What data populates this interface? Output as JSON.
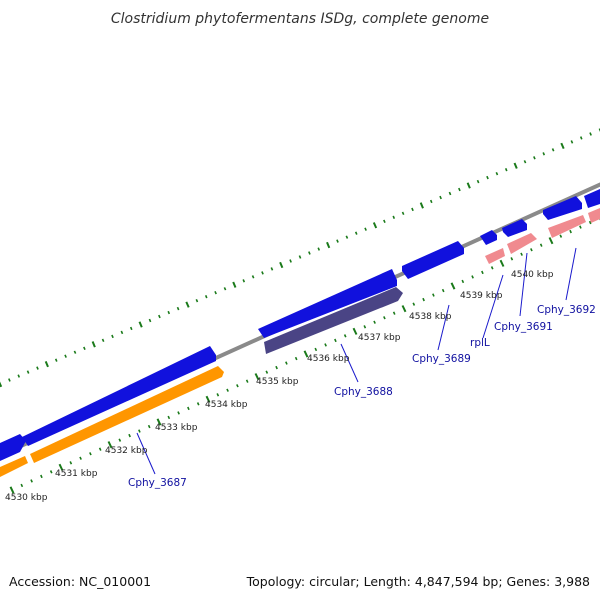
{
  "title": "Clostridium phytofermentans ISDg, complete genome",
  "footer": {
    "accession": "Accession: NC_010001",
    "summary": "Topology: circular; Length: 4,847,594 bp; Genes: 3,988"
  },
  "colors": {
    "backbone": "#8a8a8a",
    "cds": "#1111dd",
    "rna": "#f08a8f",
    "orange": "#ff9600",
    "purple": "#4a4485",
    "tick": "#1a7a1a",
    "label": "#1010a0"
  },
  "ticks": [
    "4530 kbp",
    "4531 kbp",
    "4532 kbp",
    "4533 kbp",
    "4534 kbp",
    "4535 kbp",
    "4536 kbp",
    "4537 kbp",
    "4538 kbp",
    "4539 kbp",
    "4540 kbp"
  ],
  "genes": [
    "Cphy_3687",
    "Cphy_3688",
    "Cphy_3689",
    "rplL",
    "Cphy_3691",
    "Cphy_3692"
  ]
}
